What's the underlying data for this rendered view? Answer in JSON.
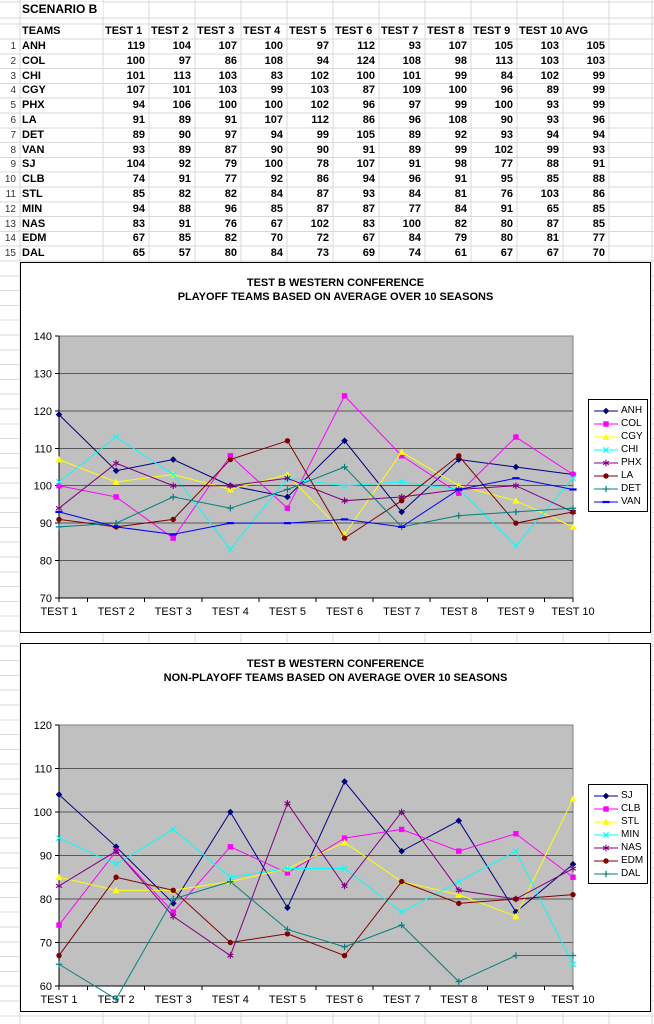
{
  "spreadsheet": {
    "scenario_label": "SCENARIO B",
    "table": {
      "corner_header": "TEAMS",
      "columns": [
        "TEST 1",
        "TEST 2",
        "TEST 3",
        "TEST 4",
        "TEST 5",
        "TEST 6",
        "TEST 7",
        "TEST 8",
        "TEST 9",
        "TEST 10",
        "AVG"
      ],
      "rows": [
        {
          "num": "1",
          "team": "ANH",
          "values": [
            119,
            104,
            107,
            100,
            97,
            112,
            93,
            107,
            105,
            103
          ],
          "avg": 105
        },
        {
          "num": "2",
          "team": "COL",
          "values": [
            100,
            97,
            86,
            108,
            94,
            124,
            108,
            98,
            113,
            103
          ],
          "avg": 103
        },
        {
          "num": "3",
          "team": "CHI",
          "values": [
            101,
            113,
            103,
            83,
            102,
            100,
            101,
            99,
            84,
            102
          ],
          "avg": 99
        },
        {
          "num": "4",
          "team": "CGY",
          "values": [
            107,
            101,
            103,
            99,
            103,
            87,
            109,
            100,
            96,
            89
          ],
          "avg": 99
        },
        {
          "num": "5",
          "team": "PHX",
          "values": [
            94,
            106,
            100,
            100,
            102,
            96,
            97,
            99,
            100,
            93
          ],
          "avg": 99
        },
        {
          "num": "6",
          "team": "LA",
          "values": [
            91,
            89,
            91,
            107,
            112,
            86,
            96,
            108,
            90,
            93
          ],
          "avg": 96
        },
        {
          "num": "7",
          "team": "DET",
          "values": [
            89,
            90,
            97,
            94,
            99,
            105,
            89,
            92,
            93,
            94
          ],
          "avg": 94
        },
        {
          "num": "8",
          "team": "VAN",
          "values": [
            93,
            89,
            87,
            90,
            90,
            91,
            89,
            99,
            102,
            99
          ],
          "avg": 93
        },
        {
          "num": "9",
          "team": "SJ",
          "values": [
            104,
            92,
            79,
            100,
            78,
            107,
            91,
            98,
            77,
            88
          ],
          "avg": 91
        },
        {
          "num": "10",
          "team": "CLB",
          "values": [
            74,
            91,
            77,
            92,
            86,
            94,
            96,
            91,
            95,
            85
          ],
          "avg": 88
        },
        {
          "num": "11",
          "team": "STL",
          "values": [
            85,
            82,
            82,
            84,
            87,
            93,
            84,
            81,
            76,
            103
          ],
          "avg": 86
        },
        {
          "num": "12",
          "team": "MIN",
          "values": [
            94,
            88,
            96,
            85,
            87,
            87,
            77,
            84,
            91,
            65
          ],
          "avg": 85
        },
        {
          "num": "13",
          "team": "NAS",
          "values": [
            83,
            91,
            76,
            67,
            102,
            83,
            100,
            82,
            80,
            87
          ],
          "avg": 85
        },
        {
          "num": "14",
          "team": "EDM",
          "values": [
            67,
            85,
            82,
            70,
            72,
            67,
            84,
            79,
            80,
            81
          ],
          "avg": 77
        },
        {
          "num": "15",
          "team": "DAL",
          "values": [
            65,
            57,
            80,
            84,
            73,
            69,
            74,
            61,
            67,
            67
          ],
          "avg": 70
        }
      ]
    }
  },
  "chart_data": [
    {
      "type": "line",
      "title_line1": "TEST B WESTERN CONFERENCE",
      "title_line2": "PLAYOFF TEAMS BASED ON AVERAGE OVER 10 SEASONS",
      "categories": [
        "TEST 1",
        "TEST 2",
        "TEST 3",
        "TEST 4",
        "TEST 5",
        "TEST 6",
        "TEST 7",
        "TEST 8",
        "TEST 9",
        "TEST 10"
      ],
      "ylim": [
        70,
        140
      ],
      "ytick_step": 10,
      "plot_bg": "#c0c0c0",
      "gridline_color": "#595959",
      "legend_position": "right",
      "series": [
        {
          "name": "ANH",
          "color": "#000080",
          "marker": "diamond",
          "values": [
            119,
            104,
            107,
            100,
            97,
            112,
            93,
            107,
            105,
            103
          ]
        },
        {
          "name": "COL",
          "color": "#ff00ff",
          "marker": "square",
          "values": [
            100,
            97,
            86,
            108,
            94,
            124,
            108,
            98,
            113,
            103
          ]
        },
        {
          "name": "CGY",
          "color": "#ffff00",
          "marker": "triangle",
          "values": [
            107,
            101,
            103,
            99,
            103,
            87,
            109,
            100,
            96,
            89
          ]
        },
        {
          "name": "CHI",
          "color": "#00ffff",
          "marker": "x",
          "values": [
            101,
            113,
            103,
            83,
            102,
            100,
            101,
            99,
            84,
            102
          ]
        },
        {
          "name": "PHX",
          "color": "#800080",
          "marker": "asterisk",
          "values": [
            94,
            106,
            100,
            100,
            102,
            96,
            97,
            99,
            100,
            93
          ]
        },
        {
          "name": "LA",
          "color": "#800000",
          "marker": "circle",
          "values": [
            91,
            89,
            91,
            107,
            112,
            86,
            96,
            108,
            90,
            93
          ]
        },
        {
          "name": "DET",
          "color": "#008080",
          "marker": "plus",
          "values": [
            89,
            90,
            97,
            94,
            99,
            105,
            89,
            92,
            93,
            94
          ]
        },
        {
          "name": "VAN",
          "color": "#0000ff",
          "marker": "dash",
          "values": [
            93,
            89,
            87,
            90,
            90,
            91,
            89,
            99,
            102,
            99
          ]
        }
      ]
    },
    {
      "type": "line",
      "title_line1": "TEST B WESTERN CONFERENCE",
      "title_line2": "NON-PLAYOFF TEAMS BASED ON AVERAGE OVER 10 SEASONS",
      "categories": [
        "TEST 1",
        "TEST 2",
        "TEST 3",
        "TEST 4",
        "TEST 5",
        "TEST 6",
        "TEST 7",
        "TEST 8",
        "TEST 9",
        "TEST 10"
      ],
      "ylim": [
        60,
        120
      ],
      "ytick_step": 10,
      "plot_bg": "#c0c0c0",
      "gridline_color": "#595959",
      "legend_position": "right",
      "series": [
        {
          "name": "SJ",
          "color": "#000080",
          "marker": "diamond",
          "values": [
            104,
            92,
            79,
            100,
            78,
            107,
            91,
            98,
            77,
            88
          ]
        },
        {
          "name": "CLB",
          "color": "#ff00ff",
          "marker": "square",
          "values": [
            74,
            91,
            77,
            92,
            86,
            94,
            96,
            91,
            95,
            85
          ]
        },
        {
          "name": "STL",
          "color": "#ffff00",
          "marker": "triangle",
          "values": [
            85,
            82,
            82,
            84,
            87,
            93,
            84,
            81,
            76,
            103
          ]
        },
        {
          "name": "MIN",
          "color": "#00ffff",
          "marker": "x",
          "values": [
            94,
            88,
            96,
            85,
            87,
            87,
            77,
            84,
            91,
            65
          ]
        },
        {
          "name": "NAS",
          "color": "#800080",
          "marker": "asterisk",
          "values": [
            83,
            91,
            76,
            67,
            102,
            83,
            100,
            82,
            80,
            87
          ]
        },
        {
          "name": "EDM",
          "color": "#800000",
          "marker": "circle",
          "values": [
            67,
            85,
            82,
            70,
            72,
            67,
            84,
            79,
            80,
            81
          ]
        },
        {
          "name": "DAL",
          "color": "#008080",
          "marker": "plus",
          "values": [
            65,
            57,
            80,
            84,
            73,
            69,
            74,
            61,
            67,
            67
          ]
        }
      ]
    }
  ]
}
